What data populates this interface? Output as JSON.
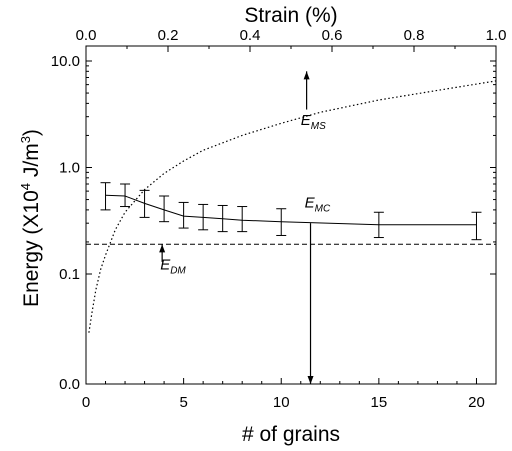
{
  "chart_data": {
    "type": "line",
    "xlabel": "# of grains",
    "ylabel_prefix": "Energy (X10",
    "ylabel_exp1": "4",
    "ylabel_mid": " J/m",
    "ylabel_exp2": "3",
    "ylabel_suffix": ")",
    "top_xlabel": "Strain (%)",
    "xlim": [
      0,
      21
    ],
    "top_xlim": [
      0,
      1.0
    ],
    "y_scale": "log",
    "ylim": [
      0.0,
      10.0
    ],
    "x_ticks": [
      0,
      5,
      10,
      15,
      20
    ],
    "x_tick_labels": [
      "0",
      "5",
      "10",
      "15",
      "20"
    ],
    "top_ticks": [
      0,
      0.2,
      0.4,
      0.6,
      0.8,
      1.0
    ],
    "top_tick_labels": [
      "0.0",
      "0.2",
      "0.4",
      "0.6",
      "0.8",
      "1.0"
    ],
    "y_ticks": [
      0.0,
      0.1,
      1.0,
      10.0
    ],
    "y_tick_labels": [
      "0.0",
      "0.1",
      "1.0",
      "10.0"
    ],
    "series": [
      {
        "label": "E_MC",
        "style": "solid",
        "x": [
          1,
          2,
          3,
          4,
          5,
          6,
          7,
          8,
          10,
          15,
          20
        ],
        "y": [
          0.55,
          0.54,
          0.46,
          0.4,
          0.35,
          0.34,
          0.33,
          0.32,
          0.31,
          0.29,
          0.29
        ],
        "err_low": [
          0.4,
          0.43,
          0.34,
          0.31,
          0.27,
          0.26,
          0.25,
          0.25,
          0.23,
          0.22,
          0.21
        ],
        "err_high": [
          0.72,
          0.7,
          0.61,
          0.54,
          0.47,
          0.45,
          0.44,
          0.43,
          0.41,
          0.38,
          0.38
        ]
      },
      {
        "label": "E_DM",
        "style": "dashed",
        "x": [
          0,
          21
        ],
        "y": [
          0.19,
          0.19
        ]
      },
      {
        "label": "E_MS",
        "style": "dotted",
        "x": [
          0.15,
          0.3,
          0.5,
          0.75,
          1,
          1.5,
          2,
          3,
          4,
          5,
          6,
          8,
          10,
          12,
          15,
          18,
          21
        ],
        "y": [
          0.025,
          0.045,
          0.075,
          0.11,
          0.15,
          0.26,
          0.38,
          0.62,
          0.88,
          1.15,
          1.45,
          2.0,
          2.6,
          3.3,
          4.3,
          5.3,
          6.5
        ]
      }
    ],
    "annotations": [
      {
        "base": "E",
        "sub": "MS",
        "x": 11.0,
        "y": 2.5
      },
      {
        "base": "E",
        "sub": "MC",
        "x": 11.2,
        "y": 0.42
      },
      {
        "base": "E",
        "sub": "DM",
        "x": 3.8,
        "y": 0.11
      }
    ],
    "arrows": [
      {
        "x": 11.3,
        "y_from": 3.5,
        "y_to": 8.0
      },
      {
        "x": 11.5,
        "y_from": 0.3,
        "y_to": 0.0
      },
      {
        "x": 3.9,
        "y_from": 0.13,
        "y_to": 0.19
      }
    ]
  }
}
